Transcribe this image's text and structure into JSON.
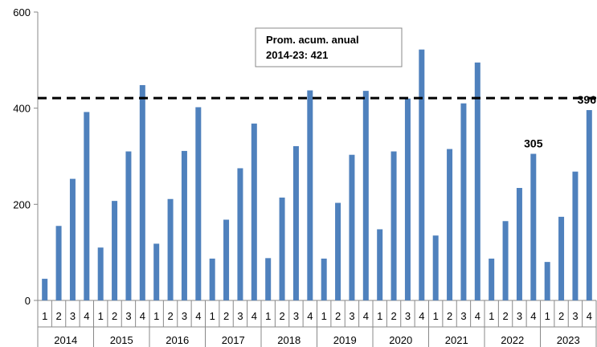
{
  "chart_data": {
    "type": "bar",
    "quarters_per_year": [
      "1",
      "2",
      "3",
      "4"
    ],
    "years": [
      "2014",
      "2015",
      "2016",
      "2017",
      "2018",
      "2019",
      "2020",
      "2021",
      "2022",
      "2023"
    ],
    "values": [
      45,
      155,
      253,
      392,
      110,
      207,
      310,
      448,
      118,
      211,
      311,
      402,
      87,
      168,
      275,
      368,
      88,
      214,
      321,
      437,
      87,
      203,
      303,
      436,
      148,
      310,
      420,
      522,
      135,
      315,
      410,
      495,
      87,
      165,
      234,
      305,
      80,
      174,
      268,
      396
    ],
    "ylim": [
      0,
      600
    ],
    "yticks": [
      "0",
      "200",
      "400",
      "600"
    ],
    "reference_line": {
      "value": 421,
      "style": "dashed"
    },
    "annotation_box": {
      "line1": "Prom. acum. anual",
      "line2": "2014-23: 421"
    },
    "data_labels": [
      {
        "index": 35,
        "text": "305"
      },
      {
        "index": 39,
        "text": "396"
      }
    ],
    "bar_color": "#4f81bd",
    "grid": false,
    "legend": "none"
  }
}
